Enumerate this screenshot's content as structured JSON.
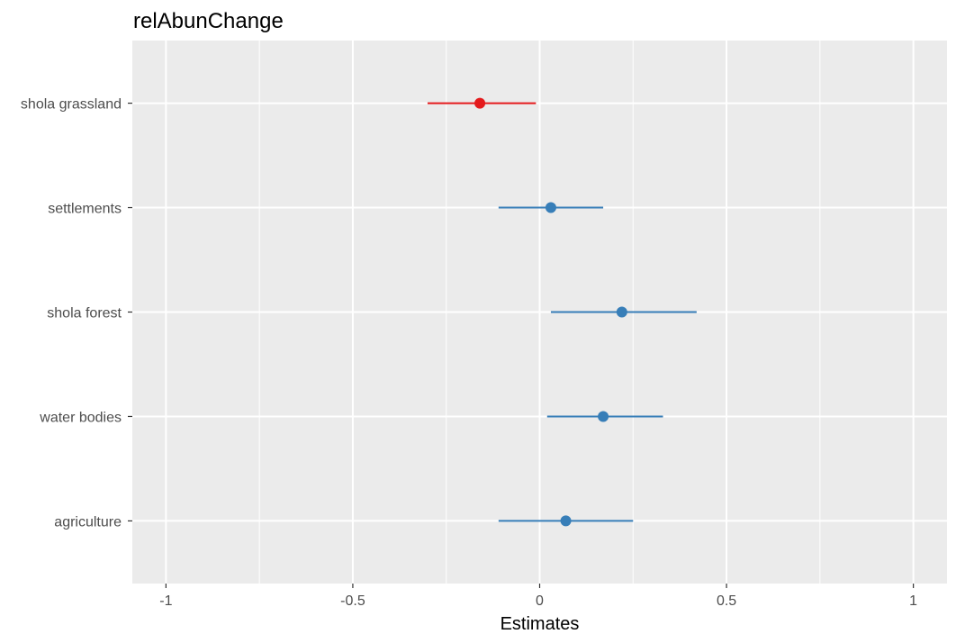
{
  "chart_data": {
    "type": "forest",
    "title": "relAbunChange",
    "xlabel": "Estimates",
    "ylabel": "",
    "xlim": [
      -1.09,
      1.09
    ],
    "x_ticks": [
      -1,
      -0.5,
      0,
      0.5,
      1
    ],
    "x_tick_labels": [
      "-1",
      "-0.5",
      "0",
      "0.5",
      "1"
    ],
    "x_minor_ticks": [
      -0.75,
      -0.25,
      0.25,
      0.75
    ],
    "grid": true,
    "legend": "none",
    "categories": [
      "shola grassland",
      "settlements",
      "shola forest",
      "water bodies",
      "agriculture"
    ],
    "estimates": [
      -0.16,
      0.03,
      0.22,
      0.17,
      0.07
    ],
    "ci_low": [
      -0.3,
      -0.11,
      0.03,
      0.02,
      -0.11
    ],
    "ci_high": [
      -0.01,
      0.17,
      0.42,
      0.33,
      0.25
    ],
    "colors": [
      "#e41a1c",
      "#377eb8",
      "#377eb8",
      "#377eb8",
      "#377eb8"
    ],
    "panel_color": "#ebebeb",
    "grid_color": "#ffffff"
  }
}
